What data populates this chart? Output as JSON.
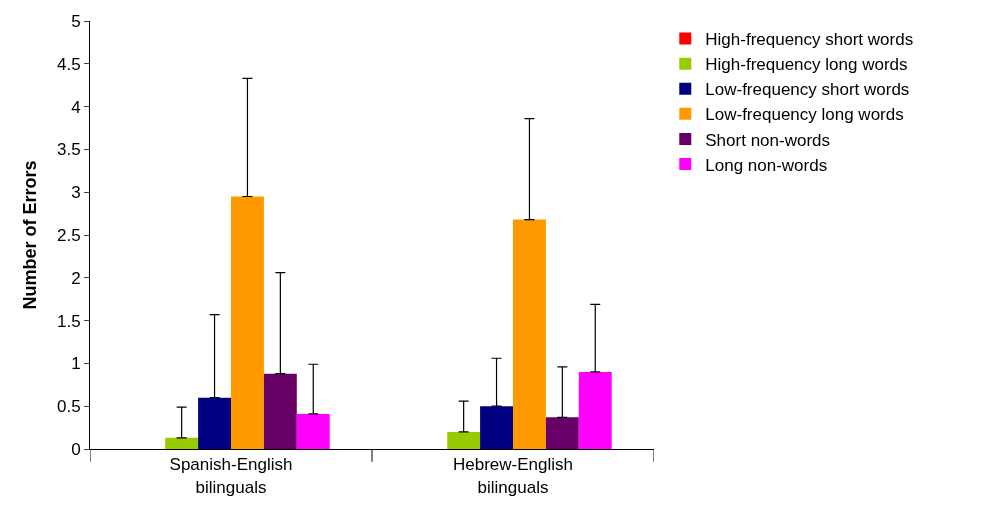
{
  "chart_data": {
    "type": "bar",
    "ylabel": "Number of Errors",
    "categories": [
      "Spanish-English bilinguals",
      "Hebrew-English bilinguals"
    ],
    "series": [
      {
        "name": "High-frequency short words",
        "color": "#ff0000",
        "values": [
          0,
          0
        ]
      },
      {
        "name": "High-frequency long words",
        "color": "#99cc00",
        "values": [
          0.13,
          0.2
        ],
        "errors": [
          [
            0.13,
            0.49
          ],
          [
            0.2,
            0.56
          ]
        ]
      },
      {
        "name": "Low-frequency short words",
        "color": "#000080",
        "values": [
          0.6,
          0.5
        ],
        "errors": [
          [
            0.6,
            1.57
          ],
          [
            0.5,
            1.06
          ]
        ]
      },
      {
        "name": "Low-frequency long words",
        "color": "#ff9900",
        "values": [
          2.95,
          2.68
        ],
        "errors": [
          [
            2.95,
            4.33
          ],
          [
            2.68,
            3.86
          ]
        ]
      },
      {
        "name": "Short non-words",
        "color": "#660066",
        "values": [
          0.88,
          0.37
        ],
        "errors": [
          [
            0.88,
            2.06
          ],
          [
            0.37,
            0.96
          ]
        ]
      },
      {
        "name": "Long non-words",
        "color": "#ff00ff",
        "values": [
          0.41,
          0.9
        ],
        "errors": [
          [
            0.41,
            0.99
          ],
          [
            0.9,
            1.69
          ]
        ]
      }
    ],
    "ylim": [
      0,
      5
    ],
    "yticks": [
      0,
      0.5,
      1,
      1.5,
      2,
      2.5,
      3,
      3.5,
      4,
      4.5,
      5
    ],
    "legend": "top right"
  }
}
